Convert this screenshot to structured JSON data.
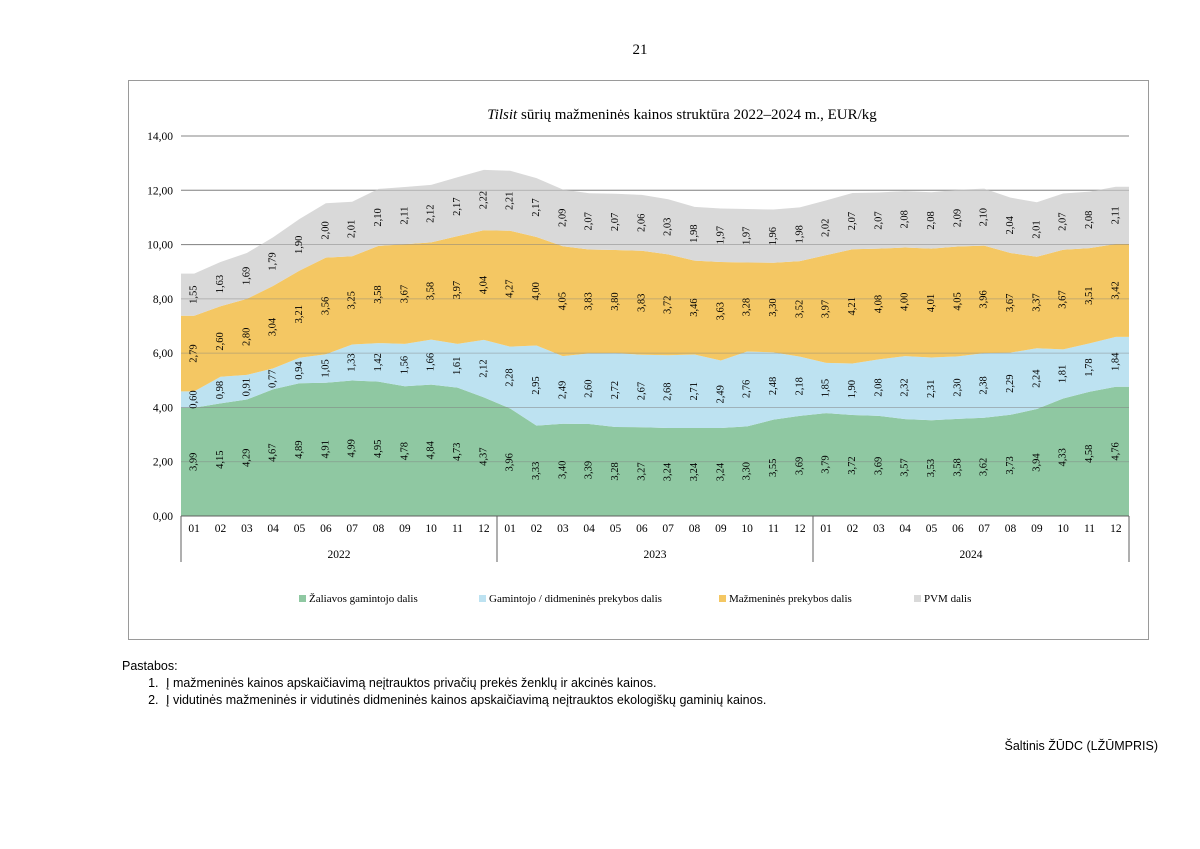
{
  "page_number": "21",
  "notes": {
    "heading": "Pastabos:",
    "items": [
      "Į mažmeninės kainos apskaičiavimą neįtrauktos privačių prekės ženklų ir akcinės kainos.",
      "Į vidutinės mažmeninės ir vidutinės didmeninės kainos apskaičiavimą neįtrauktos ekologiškų gaminių kainos."
    ]
  },
  "source": "Šaltinis ŽŪDC (LŽŪMPRIS)",
  "chart_data": {
    "type": "area",
    "stacked": true,
    "title_italic": "Tilsit",
    "title_rest": " sūrių mažmeninės kainos struktūra 2022–2024 m., EUR/kg",
    "xlabel": "",
    "ylabel": "",
    "ylim": [
      0,
      14
    ],
    "yticks": [
      "0,00",
      "2,00",
      "4,00",
      "6,00",
      "8,00",
      "10,00",
      "12,00",
      "14,00"
    ],
    "grid": true,
    "legend_position": "bottom",
    "months": [
      "01",
      "02",
      "03",
      "04",
      "05",
      "06",
      "07",
      "08",
      "09",
      "10",
      "11",
      "12",
      "01",
      "02",
      "03",
      "04",
      "05",
      "06",
      "07",
      "08",
      "09",
      "10",
      "11",
      "12",
      "01",
      "02",
      "03",
      "04",
      "05",
      "06",
      "07",
      "08",
      "09",
      "10",
      "11",
      "12"
    ],
    "years": [
      "2022",
      "2023",
      "2024"
    ],
    "series": [
      {
        "name": "Žaliavos gamintojo dalis",
        "color": "#8fc8a2",
        "values": [
          3.99,
          4.15,
          4.29,
          4.67,
          4.89,
          4.91,
          4.99,
          4.95,
          4.78,
          4.84,
          4.73,
          4.37,
          3.96,
          3.33,
          3.4,
          3.39,
          3.28,
          3.27,
          3.24,
          3.24,
          3.24,
          3.3,
          3.55,
          3.69,
          3.79,
          3.72,
          3.69,
          3.57,
          3.53,
          3.58,
          3.62,
          3.73,
          3.94,
          4.33,
          4.58,
          4.76
        ],
        "labels": [
          "3,99",
          "4,15",
          "4,29",
          "4,67",
          "4,89",
          "4,91",
          "4,99",
          "4,95",
          "4,78",
          "4,84",
          "4,73",
          "4,37",
          "3,96",
          "3,33",
          "3,40",
          "3,39",
          "3,28",
          "3,27",
          "3,24",
          "3,24",
          "3,24",
          "3,30",
          "3,55",
          "3,69",
          "3,79",
          "3,72",
          "3,69",
          "3,57",
          "3,53",
          "3,58",
          "3,62",
          "3,73",
          "3,94",
          "4,33",
          "4,58",
          "4,76"
        ]
      },
      {
        "name": "Gamintojo / didmeninės prekybos dalis",
        "color": "#bde2f1",
        "values": [
          0.6,
          0.98,
          0.91,
          0.77,
          0.94,
          1.05,
          1.33,
          1.42,
          1.56,
          1.66,
          1.61,
          2.12,
          2.28,
          2.95,
          2.49,
          2.6,
          2.72,
          2.67,
          2.68,
          2.71,
          2.49,
          2.76,
          2.48,
          2.18,
          1.85,
          1.9,
          2.08,
          2.32,
          2.31,
          2.3,
          2.38,
          2.29,
          2.24,
          1.81,
          1.78,
          1.84
        ],
        "labels": [
          "0,60",
          "0,98",
          "0,91",
          "0,77",
          "0,94",
          "1,05",
          "1,33",
          "1,42",
          "1,56",
          "1,66",
          "1,61",
          "2,12",
          "2,28",
          "2,95",
          "2,49",
          "2,60",
          "2,72",
          "2,67",
          "2,68",
          "2,71",
          "2,49",
          "2,76",
          "2,48",
          "2,18",
          "1,85",
          "1,90",
          "2,08",
          "2,32",
          "2,31",
          "2,30",
          "2,38",
          "2,29",
          "2,24",
          "1,81",
          "1,78",
          "1,84"
        ]
      },
      {
        "name": "Mažmeninės prekybos dalis",
        "color": "#f4c763",
        "values": [
          2.79,
          2.6,
          2.8,
          3.04,
          3.21,
          3.56,
          3.25,
          3.58,
          3.67,
          3.58,
          3.97,
          4.04,
          4.27,
          4.0,
          4.05,
          3.83,
          3.8,
          3.83,
          3.72,
          3.46,
          3.63,
          3.28,
          3.3,
          3.52,
          3.97,
          4.21,
          4.08,
          4.0,
          4.01,
          4.05,
          3.96,
          3.67,
          3.37,
          3.67,
          3.51,
          3.42
        ],
        "labels": [
          "2,79",
          "2,60",
          "2,80",
          "3,04",
          "3,21",
          "3,56",
          "3,25",
          "3,58",
          "3,67",
          "3,58",
          "3,97",
          "4,04",
          "4,27",
          "4,00",
          "4,05",
          "3,83",
          "3,80",
          "3,83",
          "3,72",
          "3,46",
          "3,63",
          "3,28",
          "3,30",
          "3,52",
          "3,97",
          "4,21",
          "4,08",
          "4,00",
          "4,01",
          "4,05",
          "3,96",
          "3,67",
          "3,37",
          "3,67",
          "3,51",
          "3,42"
        ]
      },
      {
        "name": "PVM dalis",
        "color": "#d9d9d9",
        "values": [
          1.55,
          1.63,
          1.69,
          1.79,
          1.9,
          2.0,
          2.01,
          2.1,
          2.11,
          2.12,
          2.17,
          2.22,
          2.21,
          2.17,
          2.09,
          2.07,
          2.07,
          2.06,
          2.03,
          1.98,
          1.97,
          1.97,
          1.96,
          1.98,
          2.02,
          2.07,
          2.07,
          2.08,
          2.08,
          2.09,
          2.1,
          2.04,
          2.01,
          2.07,
          2.08,
          2.11
        ],
        "labels": [
          "1,55",
          "1,63",
          "1,69",
          "1,79",
          "1,90",
          "2,00",
          "2,01",
          "2,10",
          "2,11",
          "2,12",
          "2,17",
          "2,22",
          "2,21",
          "2,17",
          "2,09",
          "2,07",
          "2,07",
          "2,06",
          "2,03",
          "1,98",
          "1,97",
          "1,97",
          "1,96",
          "1,98",
          "2,02",
          "2,07",
          "2,07",
          "2,08",
          "2,08",
          "2,09",
          "2,10",
          "2,04",
          "2,01",
          "2,07",
          "2,08",
          "2,11"
        ]
      }
    ]
  }
}
